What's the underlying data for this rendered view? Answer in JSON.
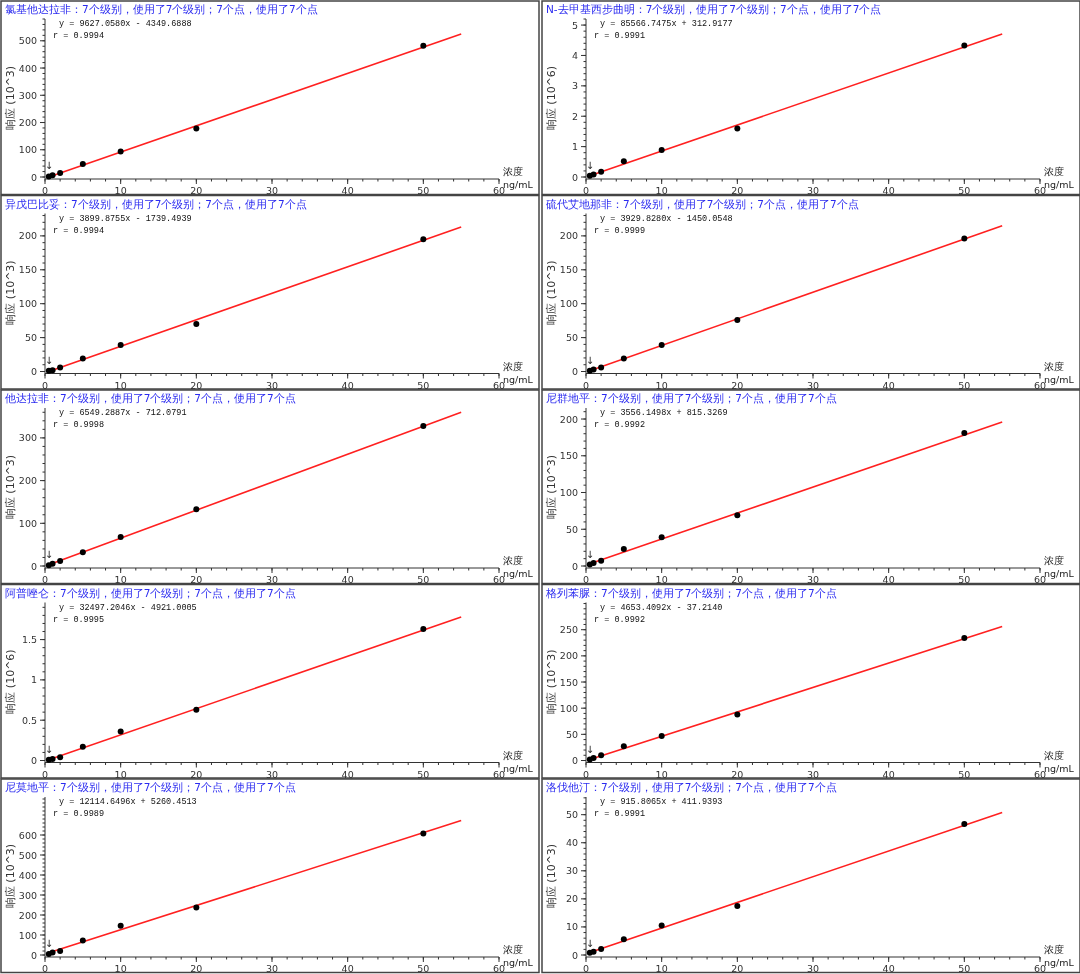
{
  "chart_data": [
    {
      "type": "scatter",
      "title": "氯基他达拉非：7个级别，使用了7个级别；7个点，使用了7个点",
      "ylabel": "响应 (10^3)",
      "xlabel": "浓度\nng/mL",
      "xlim": [
        0,
        60
      ],
      "xticks": [
        0,
        10,
        20,
        30,
        40,
        50,
        60
      ],
      "ylim": [
        0,
        580
      ],
      "yticks": [
        0,
        100,
        200,
        300,
        400,
        500
      ],
      "series": [
        {
          "color": "#000000",
          "x": [
            0.5,
            1,
            2,
            5,
            10,
            20,
            50
          ],
          "values": [
            2,
            6,
            15,
            48,
            94,
            178,
            482
          ]
        },
        {
          "type": "line",
          "color": "#ff2020",
          "x": [
            0.5,
            55
          ],
          "values": [
            0,
            525
          ]
        }
      ],
      "annotations": [
        "y = 9627.0580x - 4349.6888",
        "r = 0.9994",
        "↓"
      ]
    },
    {
      "type": "scatter",
      "title": "N-去甲基西步曲明：7个级别，使用了7个级别；7个点，使用了7个点",
      "ylabel": "响应 (10^6)",
      "xlabel": "浓度\nng/mL",
      "xlim": [
        0,
        60
      ],
      "xticks": [
        0,
        10,
        20,
        30,
        40,
        50,
        60
      ],
      "ylim": [
        0,
        5.2
      ],
      "yticks": [
        0,
        1,
        2,
        3,
        4,
        5
      ],
      "series": [
        {
          "color": "#000000",
          "x": [
            0.5,
            1,
            2,
            5,
            10,
            20,
            50
          ],
          "values": [
            0.04,
            0.08,
            0.17,
            0.52,
            0.89,
            1.6,
            4.33
          ]
        },
        {
          "type": "line",
          "color": "#ff2020",
          "x": [
            0.5,
            55
          ],
          "values": [
            0.04,
            4.71
          ]
        }
      ],
      "annotations": [
        "y = 85566.7475x + 312.9177",
        "r = 0.9991",
        "↓"
      ]
    },
    {
      "type": "scatter",
      "title": "异戊巴比妥：7个级别，使用了7个级别；7个点，使用了7个点",
      "ylabel": "响应 (10^3)",
      "xlabel": "浓度\nng/mL",
      "xlim": [
        0,
        60
      ],
      "xticks": [
        0,
        10,
        20,
        30,
        40,
        50,
        60
      ],
      "ylim": [
        0,
        233
      ],
      "yticks": [
        0,
        50,
        100,
        150,
        200
      ],
      "series": [
        {
          "color": "#000000",
          "x": [
            0.5,
            1,
            2,
            5,
            10,
            20,
            50
          ],
          "values": [
            1,
            2,
            6,
            19,
            39,
            70,
            195
          ]
        },
        {
          "type": "line",
          "color": "#ff2020",
          "x": [
            0.5,
            55
          ],
          "values": [
            0,
            213
          ]
        }
      ],
      "annotations": [
        "y = 3899.8755x - 1739.4939",
        "r = 0.9994",
        "↓"
      ]
    },
    {
      "type": "scatter",
      "title": "硫代艾地那非：7个级别，使用了7个级别；7个点，使用了7个点",
      "ylabel": "响应 (10^3)",
      "xlabel": "浓度\nng/mL",
      "xlim": [
        0,
        60
      ],
      "xticks": [
        0,
        10,
        20,
        30,
        40,
        50,
        60
      ],
      "ylim": [
        0,
        233
      ],
      "yticks": [
        0,
        50,
        100,
        150,
        200
      ],
      "series": [
        {
          "color": "#000000",
          "x": [
            0.5,
            1,
            2,
            5,
            10,
            20,
            50
          ],
          "values": [
            1,
            3,
            6,
            19,
            39,
            76,
            196
          ]
        },
        {
          "type": "line",
          "color": "#ff2020",
          "x": [
            0.5,
            55
          ],
          "values": [
            1,
            215
          ]
        }
      ],
      "annotations": [
        "y = 3929.8280x - 1450.0548",
        "r = 0.9999",
        "↓"
      ]
    },
    {
      "type": "scatter",
      "title": "他达拉非：7个级别，使用了7个级别；7个点，使用了7个点",
      "ylabel": "响应 (10^3)",
      "xlabel": "浓度\nng/mL",
      "xlim": [
        0,
        60
      ],
      "xticks": [
        0,
        10,
        20,
        30,
        40,
        50,
        60
      ],
      "ylim": [
        0,
        370
      ],
      "yticks": [
        0,
        100,
        200,
        300
      ],
      "series": [
        {
          "color": "#000000",
          "x": [
            0.5,
            1,
            2,
            5,
            10,
            20,
            50
          ],
          "values": [
            2,
            5,
            12,
            32,
            68,
            133,
            328
          ]
        },
        {
          "type": "line",
          "color": "#ff2020",
          "x": [
            0.5,
            55
          ],
          "values": [
            3,
            360
          ]
        }
      ],
      "annotations": [
        "y = 6549.2887x - 712.0791",
        "r = 0.9998",
        "↓"
      ]
    },
    {
      "type": "scatter",
      "title": "尼群地平：7个级别，使用了7个级别；7个点，使用了7个点",
      "ylabel": "响应 (10^3)",
      "xlabel": "浓度\nng/mL",
      "xlim": [
        0,
        60
      ],
      "xticks": [
        0,
        10,
        20,
        30,
        40,
        50,
        60
      ],
      "ylim": [
        0,
        215
      ],
      "yticks": [
        0,
        50,
        100,
        150,
        200
      ],
      "series": [
        {
          "color": "#000000",
          "x": [
            0.5,
            1,
            2,
            5,
            10,
            20,
            50
          ],
          "values": [
            2,
            4,
            7,
            23,
            39,
            69,
            181
          ]
        },
        {
          "type": "line",
          "color": "#ff2020",
          "x": [
            0.5,
            55
          ],
          "values": [
            3,
            196
          ]
        }
      ],
      "annotations": [
        "y = 3556.1498x + 815.3269",
        "r = 0.9992",
        "↓"
      ]
    },
    {
      "type": "scatter",
      "title": "阿普唑仑：7个级别，使用了7个级别；7个点，使用了7个点",
      "ylabel": "响应 (10^6)",
      "xlabel": "浓度\nng/mL",
      "xlim": [
        0,
        60
      ],
      "xticks": [
        0,
        10,
        20,
        30,
        40,
        50,
        60
      ],
      "ylim": [
        0,
        1.96
      ],
      "yticks": [
        0,
        0.5,
        1,
        1.5
      ],
      "series": [
        {
          "color": "#000000",
          "x": [
            0.5,
            1,
            2,
            5,
            10,
            20,
            50
          ],
          "values": [
            0.01,
            0.02,
            0.04,
            0.17,
            0.36,
            0.63,
            1.63
          ]
        },
        {
          "type": "line",
          "color": "#ff2020",
          "x": [
            0.5,
            55
          ],
          "values": [
            0.01,
            1.78
          ]
        }
      ],
      "annotations": [
        "y = 32497.2046x - 4921.0005",
        "r = 0.9995",
        "↓"
      ]
    },
    {
      "type": "scatter",
      "title": "格列苯脲：7个级别，使用了7个级别；7个点，使用了7个点",
      "ylabel": "响应 (10^3)",
      "xlabel": "浓度\nng/mL",
      "xlim": [
        0,
        60
      ],
      "xticks": [
        0,
        10,
        20,
        30,
        40,
        50,
        60
      ],
      "ylim": [
        0,
        302
      ],
      "yticks": [
        0,
        50,
        100,
        150,
        200,
        250
      ],
      "series": [
        {
          "color": "#000000",
          "x": [
            0.5,
            1,
            2,
            5,
            10,
            20,
            50
          ],
          "values": [
            2,
            5,
            10,
            27,
            47,
            88,
            234
          ]
        },
        {
          "type": "line",
          "color": "#ff2020",
          "x": [
            0.5,
            55
          ],
          "values": [
            2,
            256
          ]
        }
      ],
      "annotations": [
        "y = 4653.4092x - 37.2140",
        "r = 0.9992",
        "↓"
      ]
    },
    {
      "type": "scatter",
      "title": "尼莫地平：7个级别，使用了7个级别；7个点，使用了7个点",
      "ylabel": "响应 (10^3)",
      "xlabel": "浓度\nng/mL",
      "xlim": [
        0,
        60
      ],
      "xticks": [
        0,
        10,
        20,
        30,
        40,
        50,
        60
      ],
      "ylim": [
        0,
        790
      ],
      "yticks": [
        0,
        100,
        200,
        300,
        400,
        500,
        600
      ],
      "series": [
        {
          "color": "#000000",
          "x": [
            0.5,
            1,
            2,
            5,
            10,
            20,
            50
          ],
          "values": [
            5,
            12,
            20,
            72,
            146,
            238,
            608
          ]
        },
        {
          "type": "line",
          "color": "#ff2020",
          "x": [
            0.5,
            55
          ],
          "values": [
            11,
            672
          ]
        }
      ],
      "annotations": [
        "y = 12114.6496x + 5260.4513",
        "r = 0.9989",
        "↓"
      ]
    },
    {
      "type": "scatter",
      "title": "洛伐他汀：7个级别，使用了7个级别；7个点，使用了7个点",
      "ylabel": "响应 (10^3)",
      "xlabel": "浓度\nng/mL",
      "xlim": [
        0,
        60
      ],
      "xticks": [
        0,
        10,
        20,
        30,
        40,
        50,
        60
      ],
      "ylim": [
        0,
        56.3
      ],
      "yticks": [
        0,
        10,
        20,
        30,
        40,
        50
      ],
      "series": [
        {
          "color": "#000000",
          "x": [
            0.5,
            1,
            2,
            5,
            10,
            20,
            50
          ],
          "values": [
            0.8,
            1.2,
            2.1,
            5.6,
            10.5,
            17.5,
            46.7
          ]
        },
        {
          "type": "line",
          "color": "#ff2020",
          "x": [
            0.5,
            55
          ],
          "values": [
            0.9,
            50.8
          ]
        }
      ],
      "annotations": [
        "y = 915.8065x + 411.9393",
        "r = 0.9991",
        "↓"
      ]
    }
  ]
}
